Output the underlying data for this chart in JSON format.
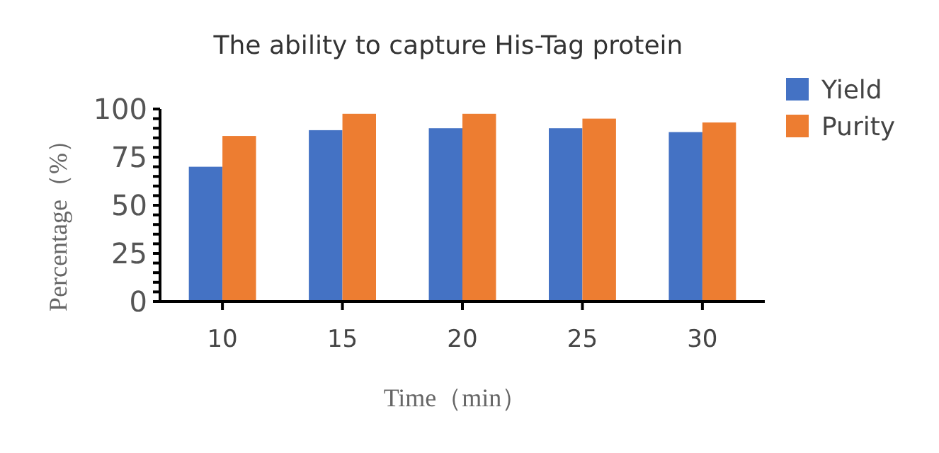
{
  "chart_data": {
    "type": "bar",
    "title": "The ability to capture His-Tag protein",
    "xlabel": "Time（min）",
    "ylabel": "Percentage（%）",
    "categories": [
      "10",
      "15",
      "20",
      "25",
      "30"
    ],
    "series": [
      {
        "name": "Yield",
        "color": "#4472c4",
        "values": [
          70,
          89,
          90,
          90,
          88
        ]
      },
      {
        "name": "Purity",
        "color": "#ed7d31",
        "values": [
          86,
          97.5,
          97.5,
          95,
          93
        ]
      }
    ],
    "ylim": [
      0,
      100
    ],
    "yticks": [
      0,
      {
        "value": 5,
        "label": null
      },
      {
        "value": 10,
        "label": null
      },
      {
        "value": 15,
        "label": null
      },
      {
        "value": 20,
        "label": null
      },
      25,
      {
        "value": 30,
        "label": null
      },
      {
        "value": 35,
        "label": null
      },
      {
        "value": 40,
        "label": null
      },
      {
        "value": 45,
        "label": null
      },
      50,
      {
        "value": 55,
        "label": null
      },
      {
        "value": 60,
        "label": null
      },
      {
        "value": 65,
        "label": null
      },
      {
        "value": 70,
        "label": null
      },
      75,
      {
        "value": 80,
        "label": null
      },
      {
        "value": 85,
        "label": null
      },
      {
        "value": 90,
        "label": null
      },
      {
        "value": 95,
        "label": null
      },
      100
    ],
    "grid": false,
    "legend": "right"
  }
}
